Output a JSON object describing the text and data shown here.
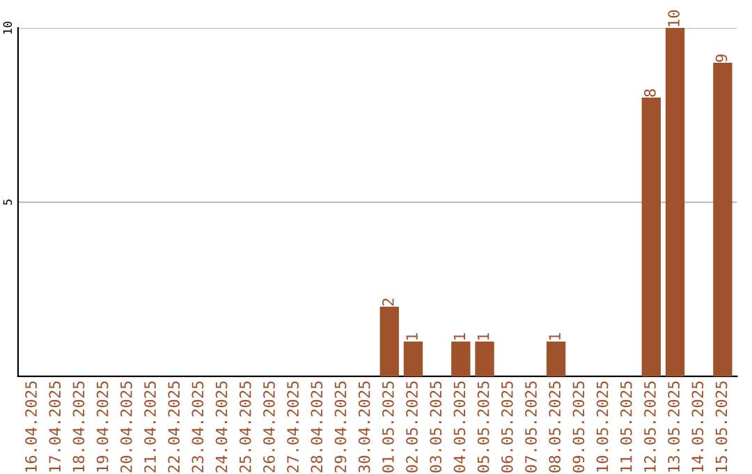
{
  "chart_data": {
    "type": "bar",
    "categories": [
      "16.04.2025",
      "17.04.2025",
      "18.04.2025",
      "19.04.2025",
      "20.04.2025",
      "21.04.2025",
      "22.04.2025",
      "23.04.2025",
      "24.04.2025",
      "25.04.2025",
      "26.04.2025",
      "27.04.2025",
      "28.04.2025",
      "29.04.2025",
      "30.04.2025",
      "01.05.2025",
      "02.05.2025",
      "03.05.2025",
      "04.05.2025",
      "05.05.2025",
      "06.05.2025",
      "07.05.2025",
      "08.05.2025",
      "09.05.2025",
      "10.05.2025",
      "11.05.2025",
      "12.05.2025",
      "13.05.2025",
      "14.05.2025",
      "15.05.2025"
    ],
    "values": [
      0,
      0,
      0,
      0,
      0,
      0,
      0,
      0,
      0,
      0,
      0,
      0,
      0,
      0,
      0,
      2,
      1,
      0,
      1,
      1,
      0,
      0,
      1,
      0,
      0,
      0,
      8,
      10,
      0,
      9
    ],
    "value_labels": [
      null,
      null,
      null,
      null,
      null,
      null,
      null,
      null,
      null,
      null,
      null,
      null,
      null,
      null,
      null,
      "2",
      "1",
      null,
      "1",
      "1",
      null,
      null,
      "1",
      null,
      null,
      null,
      "8",
      "10",
      null,
      "9"
    ],
    "color": "#a0522d",
    "ylim": [
      0,
      10
    ],
    "yticks": [
      5,
      10
    ],
    "grid": "y"
  }
}
